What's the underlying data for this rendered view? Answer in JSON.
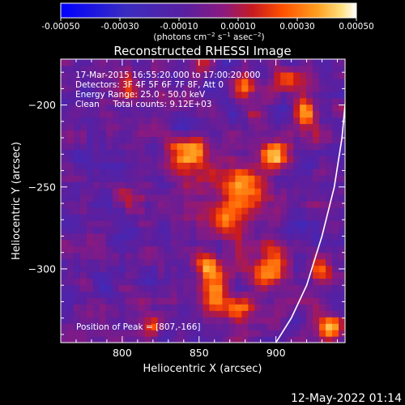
{
  "colorbar": {
    "ticks": [
      "-0.00050",
      "-0.00030",
      "-0.00010",
      "0.00010",
      "0.00030",
      "0.00050"
    ],
    "tick_values": [
      -0.0005,
      -0.0003,
      -0.0001,
      0.0001,
      0.0003,
      0.0005
    ],
    "range": [
      -0.0005,
      0.0005
    ],
    "units_prefix": "(photons cm",
    "units_exp1": "−2",
    "units_mid": " s",
    "units_exp2": "−1",
    "units_mid2": " asec",
    "units_exp3": "−2",
    "units_suffix": ")"
  },
  "chart_data": {
    "type": "heatmap",
    "title": "Reconstructed RHESSI Image",
    "xlabel": "Heliocentric X (arcsec)",
    "ylabel": "Heliocentric Y (arcsec)",
    "xlim": [
      760,
      945
    ],
    "ylim": [
      -345,
      -172
    ],
    "xticks": [
      800,
      850,
      900
    ],
    "xtick_labels": [
      "800",
      "850",
      "900"
    ],
    "yticks": [
      -200,
      -250,
      -300
    ],
    "ytick_labels": [
      "−200",
      "−250",
      "−300"
    ],
    "colormap": "blue-purple-red-yellow-white",
    "annotations": [
      "17-Mar-2015 16:55:20.000 to 17:00:20.000",
      "Detectors: 3F 4F 5F 6F 7F 8F, Att 0",
      "Energy Range: 25.0 - 50.0 keV",
      "Clean     Total counts: 9.12E+03"
    ],
    "peak_label": "Position of Peak = [807,-166]",
    "peak": [
      807,
      -166
    ],
    "limb_curve": [
      [
        900,
        -345
      ],
      [
        910,
        -330
      ],
      [
        920,
        -310
      ],
      [
        930,
        -280
      ],
      [
        938,
        -250
      ],
      [
        943,
        -220
      ],
      [
        946,
        -190
      ]
    ],
    "hot_regions": [
      {
        "x": 845,
        "y": -230,
        "r": 12,
        "v": 0.00045
      },
      {
        "x": 880,
        "y": -250,
        "r": 15,
        "v": 0.0004
      },
      {
        "x": 870,
        "y": -270,
        "r": 12,
        "v": 0.00035
      },
      {
        "x": 860,
        "y": -315,
        "r": 10,
        "v": 0.0003
      },
      {
        "x": 895,
        "y": -300,
        "r": 10,
        "v": 0.00045
      },
      {
        "x": 875,
        "y": -325,
        "r": 9,
        "v": 0.0004
      },
      {
        "x": 920,
        "y": -205,
        "r": 8,
        "v": 0.0004
      },
      {
        "x": 905,
        "y": -185,
        "r": 9,
        "v": 0.0003
      },
      {
        "x": 880,
        "y": -190,
        "r": 8,
        "v": 0.00025
      },
      {
        "x": 935,
        "y": -335,
        "r": 7,
        "v": 0.00045
      },
      {
        "x": 805,
        "y": -190,
        "r": 7,
        "v": 0.00025
      },
      {
        "x": 800,
        "y": -255,
        "r": 6,
        "v": 0.0002
      },
      {
        "x": 820,
        "y": -335,
        "r": 7,
        "v": 0.00025
      },
      {
        "x": 930,
        "y": -300,
        "r": 7,
        "v": 0.0003
      },
      {
        "x": 855,
        "y": -300,
        "r": 8,
        "v": 0.0004
      },
      {
        "x": 900,
        "y": -230,
        "r": 8,
        "v": 0.00035
      }
    ]
  },
  "footer": {
    "timestamp": "12-May-2022 01:14"
  }
}
